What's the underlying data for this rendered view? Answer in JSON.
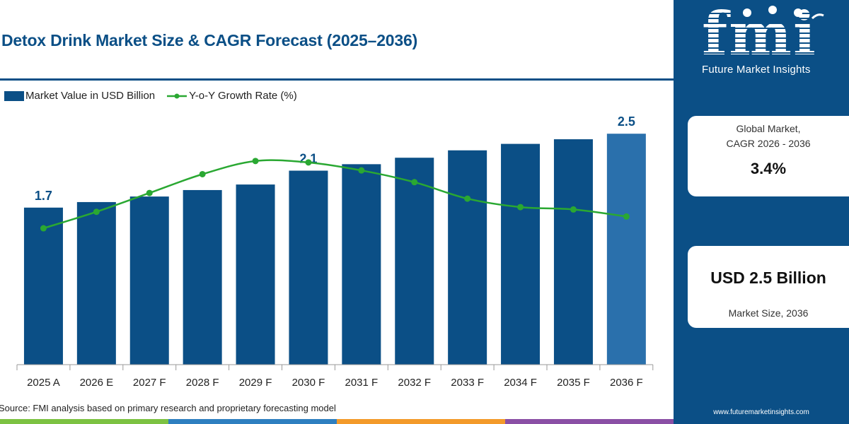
{
  "title": "Detox Drink Market Size & CAGR Forecast (2025–2036)",
  "legend": {
    "bar_label": "Market Value in USD Billion",
    "line_label": "Y-o-Y Growth Rate (%)"
  },
  "source": "Source: FMI analysis based on primary research and proprietary forecasting model",
  "colors": {
    "bar": "#0b4f86",
    "bar_highlight": "#2a70ac",
    "line": "#2aa832",
    "panel": "#0b4f86"
  },
  "chart_data": {
    "type": "bar",
    "categories": [
      "2025 A",
      "2026 E",
      "2027 F",
      "2028 F",
      "2029 F",
      "2030 F",
      "2031 F",
      "2032 F",
      "2033 F",
      "2034 F",
      "2035 F",
      "2036 F"
    ],
    "series": [
      {
        "name": "Market Value in USD Billion",
        "type": "bar",
        "values": [
          1.7,
          1.76,
          1.82,
          1.89,
          1.95,
          2.1,
          2.17,
          2.24,
          2.32,
          2.39,
          2.44,
          2.5
        ]
      },
      {
        "name": "Y-o-Y Growth Rate (%)",
        "type": "line",
        "values": [
          2.9,
          3.25,
          3.65,
          4.05,
          4.33,
          4.3,
          4.13,
          3.88,
          3.53,
          3.35,
          3.3,
          3.15
        ]
      }
    ],
    "data_labels": [
      {
        "index": 0,
        "text": "1.7"
      },
      {
        "index": 5,
        "text": "2.1"
      },
      {
        "index": 11,
        "text": "2.5"
      }
    ],
    "ylim": [
      0,
      2.8
    ],
    "y2lim": [
      0,
      5.5
    ],
    "legend_position": "top-left",
    "grid": false
  },
  "panel": {
    "logo_text": "Future Market Insights",
    "cagr_label": "Global Market,\nCAGR 2026 - 2036",
    "cagr_value": "3.4%",
    "size_value": "USD 2.5 Billion",
    "size_label": "Market Size, 2036",
    "url": "www.futuremarketinsights.com"
  }
}
